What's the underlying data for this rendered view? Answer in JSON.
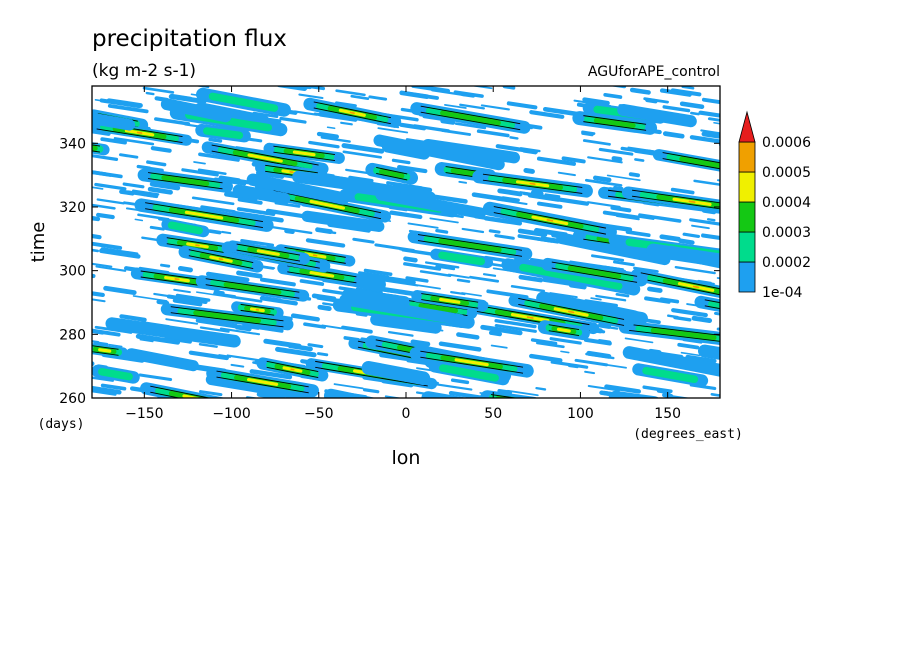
{
  "chart_data": {
    "type": "heatmap",
    "title": "precipitation flux",
    "subtitle": "(kg m-2 s-1)",
    "run_label": "AGUforAPE_control",
    "xlabel": "lon",
    "x_units": "(degrees_east)",
    "ylabel": "time",
    "y_units": "(days)",
    "xlim": [
      -180,
      180
    ],
    "ylim": [
      260,
      358
    ],
    "x_ticks": [
      -150,
      -100,
      -50,
      0,
      50,
      100,
      150
    ],
    "y_ticks": [
      260,
      280,
      300,
      320,
      340
    ],
    "colorbar": {
      "labels": [
        "1e-04",
        "0.0002",
        "0.0003",
        "0.0004",
        "0.0005",
        "0.0006"
      ],
      "colors": [
        "#1ea0f0",
        "#00dc8c",
        "#14c814",
        "#f0f000",
        "#f0a000",
        "#e61e1e"
      ],
      "extend": "max"
    },
    "grid": false
  }
}
